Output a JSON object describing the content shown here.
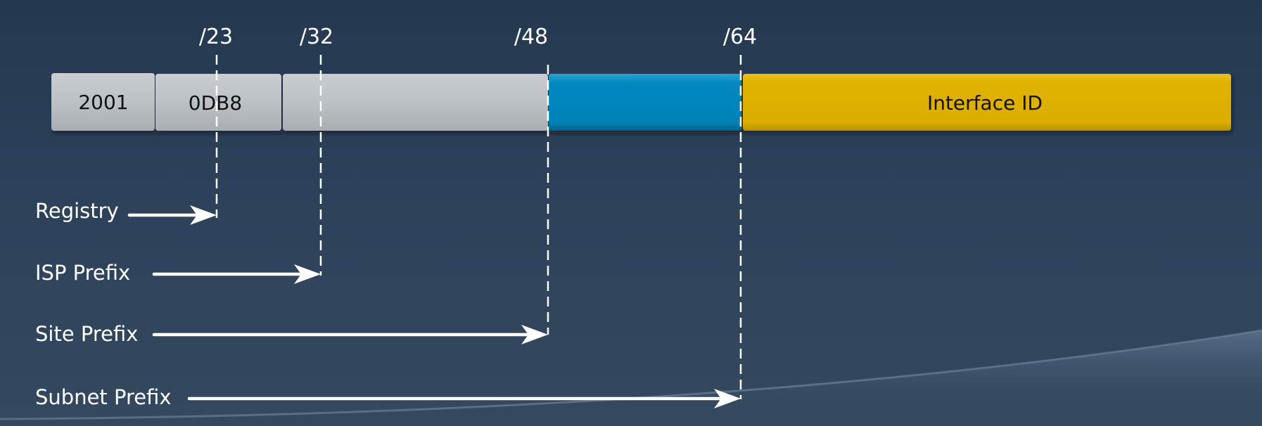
{
  "colors": {
    "segment_gray": "#bdc2c6",
    "segment_blue": "#0687bd",
    "segment_gold": "#dfb100",
    "line": "#ffffff",
    "background": "#2d425a"
  },
  "segments": [
    {
      "id": "seg-2001",
      "label": "2001",
      "color": "#bdc2c6"
    },
    {
      "id": "seg-0db8",
      "label": "0DB8",
      "color": "#bdc2c6"
    },
    {
      "id": "seg-site",
      "label": "",
      "color": "#bdc2c6"
    },
    {
      "id": "seg-subnet",
      "label": "",
      "color": "#0687bd"
    },
    {
      "id": "seg-interface",
      "label": "Interface ID",
      "color": "#dfb100"
    }
  ],
  "boundaries": [
    {
      "id": "b23",
      "label": "/23"
    },
    {
      "id": "b32",
      "label": "/32"
    },
    {
      "id": "b48",
      "label": "/48"
    },
    {
      "id": "b64",
      "label": "/64"
    }
  ],
  "prefixes": [
    {
      "id": "registry",
      "label": "Registry",
      "boundary": "/23"
    },
    {
      "id": "isp",
      "label": "ISP Prefix",
      "boundary": "/32"
    },
    {
      "id": "site",
      "label": "Site Prefix",
      "boundary": "/48"
    },
    {
      "id": "subnet",
      "label": "Subnet Prefix",
      "boundary": "/64"
    }
  ]
}
